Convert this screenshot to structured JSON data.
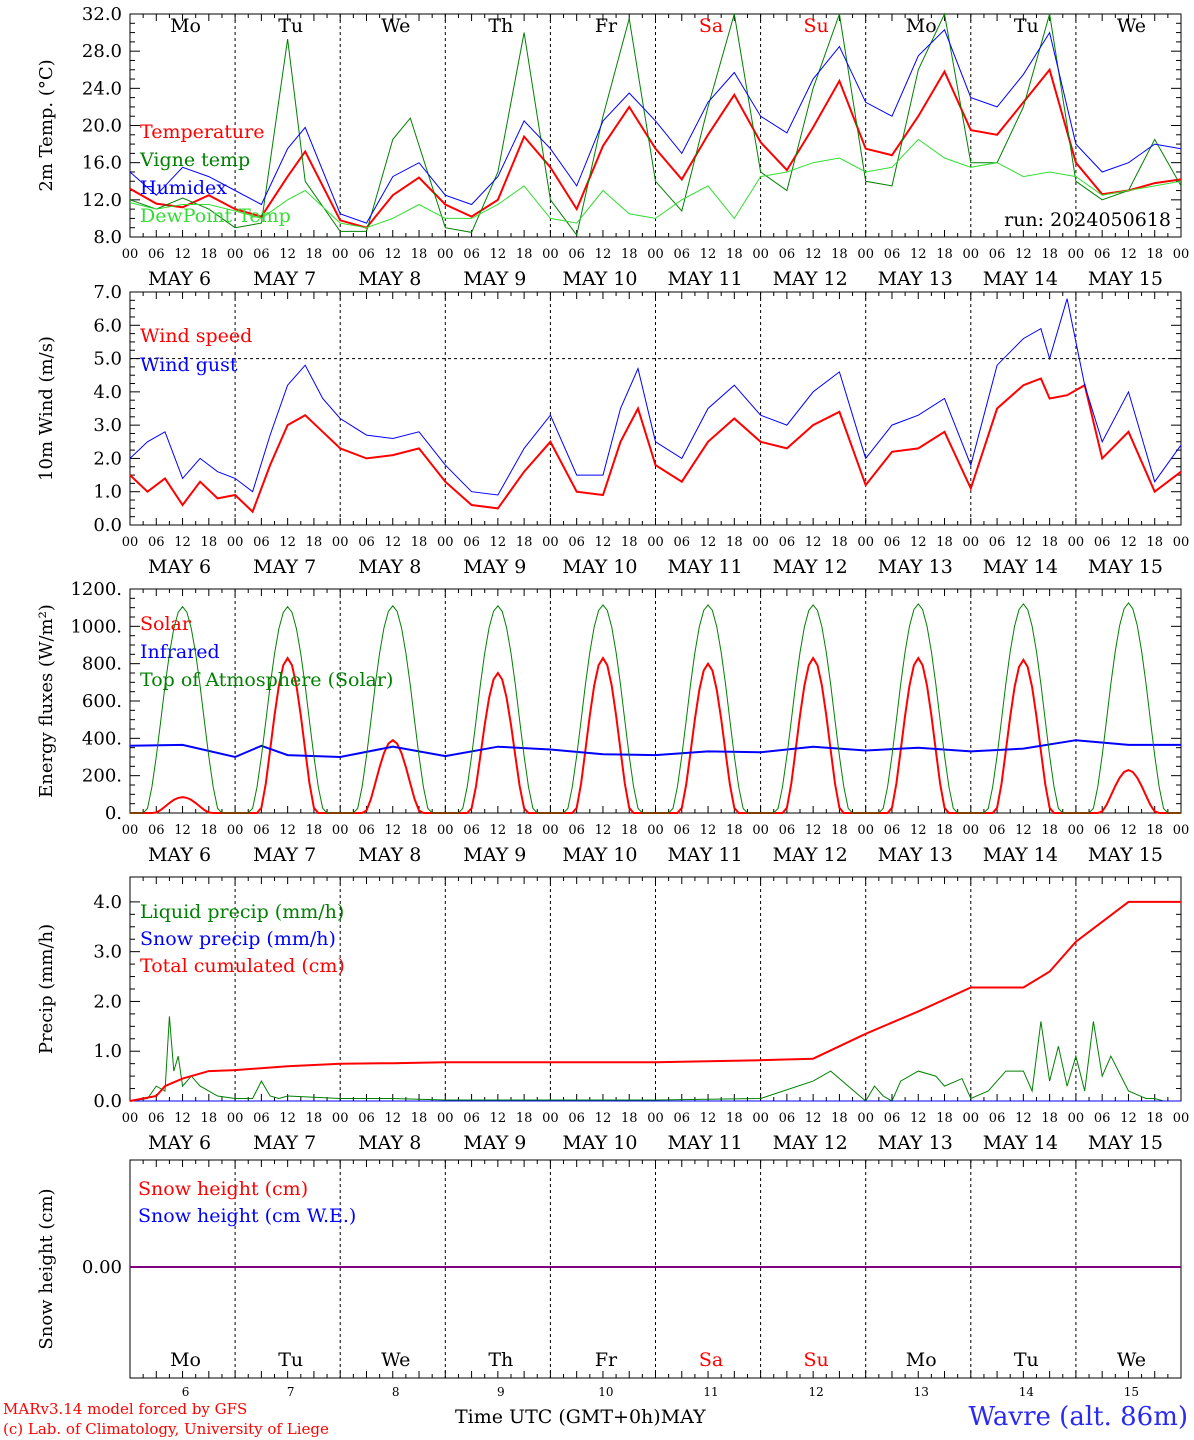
{
  "days": {
    "weekday": [
      "Mo",
      "Tu",
      "We",
      "Th",
      "Fr",
      "Sa",
      "Su",
      "Mo",
      "Tu",
      "We"
    ],
    "weekday_color": [
      "#000000",
      "#000000",
      "#000000",
      "#000000",
      "#000000",
      "#ff0000",
      "#ff0000",
      "#000000",
      "#000000",
      "#000000"
    ],
    "date_labels": [
      "MAY  6",
      "MAY  7",
      "MAY  8",
      "MAY  9",
      "MAY 10",
      "MAY 11",
      "MAY 12",
      "MAY 13",
      "MAY 14",
      "MAY 15"
    ],
    "day_numbers": [
      "6",
      "7",
      "8",
      "9",
      "10",
      "11",
      "12",
      "13",
      "14",
      "15"
    ],
    "hour_ticks": [
      "00",
      "06",
      "12",
      "18"
    ],
    "final_tick": "00"
  },
  "run_label": "run: 2024050618",
  "x_title": "Time UTC (GMT+0h)MAY",
  "station_label": "Wavre (alt. 86m)",
  "credit_line1": "MARv3.14 model forced by GFS",
  "credit_line2": "(c) Lab. of Climatology, University of Liege",
  "colors": {
    "red": "#ff0000",
    "green": "#008000",
    "blue": "#0000ff",
    "lightgreen": "#33dd33",
    "purple": "#800080"
  },
  "chart_data": [
    {
      "type": "line",
      "ylabel": "2m Temp. (°C)",
      "ylim": [
        8,
        32
      ],
      "yticks": [
        "8.0",
        "12.0",
        "16.0",
        "20.0",
        "24.0",
        "28.0",
        "32.0"
      ],
      "x_unit": "hours since May 6 00 UTC",
      "series": [
        {
          "name": "Temperature",
          "color": "#ff0000",
          "width": 2,
          "x": [
            0,
            6,
            12,
            18,
            24,
            30,
            36,
            40,
            48,
            54,
            60,
            66,
            72,
            78,
            84,
            90,
            96,
            102,
            108,
            114,
            120,
            126,
            132,
            138,
            144,
            150,
            156,
            162,
            168,
            174,
            180,
            186,
            192,
            198,
            204,
            210,
            216,
            222,
            228,
            234,
            240
          ],
          "y": [
            13.2,
            11.6,
            11.2,
            12.5,
            11.0,
            10.2,
            14.5,
            17.2,
            9.8,
            9.0,
            12.5,
            14.4,
            11.5,
            10.2,
            12.0,
            18.8,
            15.5,
            11.0,
            17.8,
            22.0,
            17.5,
            14.2,
            19.0,
            23.3,
            18.2,
            15.2,
            19.8,
            24.8,
            17.5,
            16.8,
            21.0,
            25.8,
            19.5,
            19.0,
            22.5,
            26.0,
            16.0,
            12.6,
            13.0,
            13.8,
            14.2
          ]
        },
        {
          "name": "Vigne temp",
          "color": "#008000",
          "width": 1,
          "x": [
            0,
            6,
            12,
            18,
            24,
            30,
            36,
            40,
            48,
            54,
            60,
            64,
            72,
            78,
            84,
            90,
            96,
            102,
            108,
            114,
            120,
            126,
            132,
            138,
            144,
            150,
            156,
            162,
            168,
            174,
            180,
            186,
            192,
            198,
            204,
            210,
            216,
            222,
            228,
            234,
            240
          ],
          "y": [
            12.0,
            11.0,
            12.2,
            11.0,
            9.0,
            9.5,
            29.3,
            14.0,
            8.6,
            8.6,
            18.5,
            20.8,
            9.0,
            8.5,
            15.0,
            30.0,
            12.0,
            8.2,
            21.0,
            31.5,
            14.0,
            10.8,
            22.0,
            32.0,
            15.0,
            13.0,
            24.0,
            32.0,
            14.0,
            13.5,
            26.0,
            32.0,
            16.0,
            16.0,
            22.0,
            32.0,
            14.0,
            12.0,
            13.0,
            18.5,
            13.5
          ]
        },
        {
          "name": "Humidex",
          "color": "#0000ff",
          "width": 1,
          "x": [
            0,
            6,
            12,
            18,
            24,
            30,
            36,
            40,
            48,
            54,
            60,
            66,
            72,
            78,
            84,
            90,
            96,
            102,
            108,
            114,
            120,
            126,
            132,
            138,
            144,
            150,
            156,
            162,
            168,
            174,
            180,
            186,
            192,
            198,
            204,
            210,
            216,
            222,
            228,
            234,
            240
          ],
          "y": [
            15.0,
            12.5,
            15.5,
            14.5,
            13.0,
            11.5,
            17.5,
            19.8,
            10.5,
            9.5,
            14.5,
            16.0,
            12.5,
            11.5,
            14.5,
            20.5,
            17.5,
            13.5,
            20.5,
            23.5,
            20.5,
            17.0,
            22.5,
            25.7,
            21.0,
            19.2,
            25.0,
            28.5,
            22.5,
            21.0,
            27.5,
            30.3,
            23.0,
            22.0,
            25.5,
            30.0,
            18.0,
            15.0,
            16.0,
            18.0,
            17.5
          ]
        },
        {
          "name": "DewPoint Temp",
          "color": "#33dd33",
          "width": 1,
          "x": [
            0,
            6,
            12,
            18,
            24,
            30,
            36,
            40,
            48,
            54,
            60,
            66,
            72,
            78,
            84,
            90,
            96,
            102,
            108,
            114,
            120,
            126,
            132,
            138,
            144,
            150,
            156,
            162,
            168,
            174,
            180,
            186,
            192,
            198,
            204,
            210,
            216,
            222,
            228,
            234,
            240
          ],
          "y": [
            11.7,
            11.0,
            11.5,
            11.5,
            10.8,
            10.0,
            12.0,
            13.0,
            9.5,
            9.0,
            10.0,
            11.5,
            10.0,
            10.0,
            11.5,
            13.5,
            10.0,
            9.5,
            13.0,
            10.5,
            10.0,
            12.0,
            13.5,
            10.0,
            14.5,
            15.0,
            16.0,
            16.5,
            15.0,
            15.5,
            18.5,
            16.5,
            15.5,
            16.0,
            14.5,
            15.0,
            14.5,
            12.5,
            13.0,
            13.5,
            14.0
          ]
        }
      ]
    },
    {
      "type": "line",
      "ylabel": "10m Wind (m/s)",
      "ylim": [
        0,
        7
      ],
      "yticks": [
        "0.0",
        "1.0",
        "2.0",
        "3.0",
        "4.0",
        "5.0",
        "6.0",
        "7.0"
      ],
      "reference_line": 5.0,
      "series": [
        {
          "name": "Wind speed",
          "color": "#ff0000",
          "width": 2,
          "x": [
            0,
            4,
            8,
            12,
            16,
            20,
            24,
            28,
            32,
            36,
            40,
            44,
            48,
            54,
            60,
            66,
            72,
            78,
            84,
            90,
            96,
            102,
            108,
            112,
            116,
            120,
            126,
            132,
            138,
            144,
            150,
            156,
            162,
            168,
            174,
            180,
            186,
            192,
            198,
            204,
            208,
            210,
            214,
            218,
            222,
            228,
            234,
            240
          ],
          "y": [
            1.5,
            1.0,
            1.4,
            0.6,
            1.3,
            0.8,
            0.9,
            0.4,
            1.8,
            3.0,
            3.3,
            2.8,
            2.3,
            2.0,
            2.1,
            2.3,
            1.3,
            0.6,
            0.5,
            1.6,
            2.5,
            1.0,
            0.9,
            2.5,
            3.5,
            1.8,
            1.3,
            2.5,
            3.2,
            2.5,
            2.3,
            3.0,
            3.4,
            1.2,
            2.2,
            2.3,
            2.8,
            1.1,
            3.5,
            4.2,
            4.4,
            3.8,
            3.9,
            4.2,
            2.0,
            2.8,
            1.0,
            1.6
          ]
        },
        {
          "name": "Wind gust",
          "color": "#0000ff",
          "width": 1,
          "x": [
            0,
            4,
            8,
            12,
            16,
            20,
            24,
            28,
            32,
            36,
            40,
            44,
            48,
            54,
            60,
            66,
            72,
            78,
            84,
            90,
            96,
            102,
            108,
            112,
            116,
            120,
            126,
            132,
            138,
            144,
            150,
            156,
            162,
            168,
            174,
            180,
            186,
            192,
            198,
            204,
            208,
            210,
            214,
            218,
            222,
            228,
            234,
            240
          ],
          "y": [
            2.0,
            2.5,
            2.8,
            1.4,
            2.0,
            1.6,
            1.4,
            1.0,
            2.7,
            4.2,
            4.8,
            3.8,
            3.2,
            2.7,
            2.6,
            2.8,
            1.8,
            1.0,
            0.9,
            2.3,
            3.3,
            1.5,
            1.5,
            3.5,
            4.7,
            2.5,
            2.0,
            3.5,
            4.2,
            3.3,
            3.0,
            4.0,
            4.6,
            2.0,
            3.0,
            3.3,
            3.8,
            1.8,
            4.8,
            5.6,
            5.9,
            5.0,
            6.8,
            4.2,
            2.5,
            4.0,
            1.3,
            2.4
          ]
        }
      ]
    },
    {
      "type": "line",
      "ylabel": "Energy fluxes (W/m²)",
      "ylim": [
        0,
        1200
      ],
      "yticks": [
        "0.",
        "200.",
        "400.",
        "600.",
        "800.",
        "1000.",
        "1200."
      ],
      "series": [
        {
          "name": "Solar",
          "color": "#ff0000",
          "width": 2,
          "daily_peak": [
            85,
            830,
            390,
            750,
            830,
            800,
            830,
            830,
            820,
            230
          ]
        },
        {
          "name": "Infrared",
          "color": "#0000ff",
          "width": 2,
          "x": [
            0,
            12,
            24,
            30,
            36,
            48,
            60,
            72,
            84,
            96,
            108,
            120,
            132,
            144,
            156,
            168,
            180,
            192,
            204,
            216,
            228,
            240
          ],
          "y": [
            360,
            365,
            300,
            360,
            310,
            300,
            355,
            305,
            355,
            340,
            315,
            310,
            330,
            325,
            355,
            335,
            350,
            330,
            345,
            390,
            365,
            365
          ]
        },
        {
          "name": "Top of Atmosphere (Solar)",
          "color": "#008000",
          "width": 1,
          "daily_peak": [
            1105,
            1105,
            1110,
            1110,
            1115,
            1115,
            1115,
            1120,
            1120,
            1125
          ]
        }
      ]
    },
    {
      "type": "line",
      "ylabel": "Precip (mm/h)",
      "ylim": [
        0,
        4.5
      ],
      "yticks": [
        "0.0",
        "1.0",
        "2.0",
        "3.0",
        "4.0"
      ],
      "series": [
        {
          "name": "Liquid precip (mm/h)",
          "color": "#008000",
          "width": 1,
          "x": [
            0,
            4,
            6,
            8,
            9,
            10,
            11,
            12,
            14,
            16,
            20,
            24,
            28,
            30,
            32,
            34,
            36,
            48,
            60,
            72,
            96,
            120,
            144,
            156,
            160,
            164,
            168,
            170,
            172,
            174,
            176,
            180,
            184,
            186,
            190,
            192,
            196,
            200,
            204,
            206,
            208,
            210,
            212,
            214,
            216,
            218,
            220,
            222,
            224,
            228,
            232,
            234,
            236,
            240
          ],
          "y": [
            0,
            0.05,
            0.3,
            0.2,
            1.7,
            0.6,
            0.9,
            0.3,
            0.5,
            0.3,
            0.1,
            0.05,
            0.05,
            0.4,
            0.1,
            0.05,
            0.1,
            0.05,
            0.05,
            0.02,
            0.02,
            0.02,
            0.05,
            0.4,
            0.6,
            0.3,
            0.0,
            0.3,
            0.1,
            0.0,
            0.4,
            0.6,
            0.5,
            0.3,
            0.45,
            0.05,
            0.2,
            0.6,
            0.6,
            0.2,
            1.6,
            0.4,
            1.1,
            0.3,
            0.9,
            0.2,
            1.6,
            0.5,
            0.9,
            0.2,
            0.05,
            0.05,
            0.0,
            0.0
          ]
        },
        {
          "name": "Snow precip (mm/h)",
          "color": "#0000ff",
          "width": 1,
          "x": [
            0,
            240
          ],
          "y": [
            0,
            0
          ]
        },
        {
          "name": "Total cumulated (cm)",
          "color": "#ff0000",
          "width": 2,
          "x": [
            0,
            6,
            8,
            12,
            18,
            24,
            36,
            48,
            60,
            72,
            96,
            120,
            144,
            156,
            168,
            180,
            192,
            204,
            210,
            216,
            228,
            240
          ],
          "y": [
            0,
            0.1,
            0.3,
            0.45,
            0.6,
            0.62,
            0.7,
            0.75,
            0.76,
            0.78,
            0.78,
            0.78,
            0.82,
            0.85,
            1.35,
            1.8,
            2.28,
            2.28,
            2.6,
            3.2,
            4.0,
            4.0
          ]
        }
      ]
    },
    {
      "type": "line",
      "ylabel": "Snow height (cm)",
      "yticks": [
        "0.00"
      ],
      "series": [
        {
          "name": "Snow height (cm)",
          "color": "#ff0000",
          "width": 2,
          "x": [
            0,
            240
          ],
          "y": [
            0,
            0
          ]
        },
        {
          "name": "Snow height (cm W.E.)",
          "color": "#0000ff",
          "width": 2,
          "x": [
            0,
            240
          ],
          "y": [
            0,
            0
          ]
        }
      ]
    }
  ]
}
